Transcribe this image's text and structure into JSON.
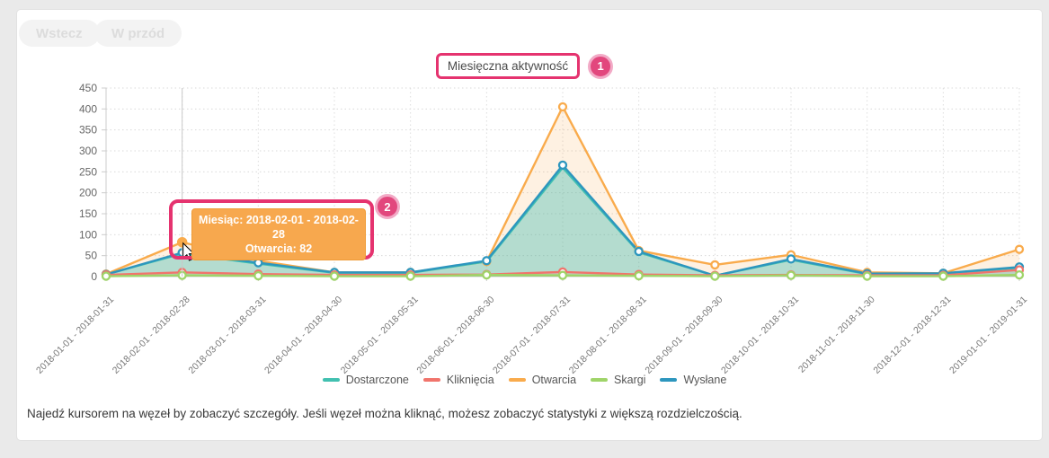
{
  "toolbar": {
    "back_label": "Wstecz",
    "forward_label": "W przód"
  },
  "header": {
    "chart_title": "Miesięczna aktywność"
  },
  "annotations": {
    "badge1_label": "1",
    "badge2_label": "2",
    "highlight_color": "#e5336f"
  },
  "tooltip": {
    "line1": "Miesiąc: 2018-02-01 - 2018-02-28",
    "line2": "Otwarcia: 82",
    "background": "#f7a84e"
  },
  "footer_note": "Najedź kursorem na węzeł by zobaczyć szczegóły. Jeśli węzeł można kliknąć, możesz zobaczyć statystyki z większą rozdzielczością.",
  "chart_data": {
    "type": "area",
    "title": "Miesięczna aktywność",
    "categories": [
      "2018-01-01 - 2018-01-31",
      "2018-02-01 - 2018-02-28",
      "2018-03-01 - 2018-03-31",
      "2018-04-01 - 2018-04-30",
      "2018-05-01 - 2018-05-31",
      "2018-06-01 - 2018-06-30",
      "2018-07-01 - 2018-07-31",
      "2018-08-01 - 2018-08-31",
      "2018-09-01 - 2018-09-30",
      "2018-10-01 - 2018-10-31",
      "2018-11-01 - 2018-11-30",
      "2018-12-01 - 2018-12-31",
      "2019-01-01 - 2019-01-31"
    ],
    "series": [
      {
        "name": "Dostarczone",
        "color": "#41c0b0",
        "fill_opacity": 0.35,
        "values": [
          5,
          55,
          31,
          9,
          9,
          36,
          260,
          58,
          2,
          40,
          6,
          7,
          21
        ]
      },
      {
        "name": "Kliknięcia",
        "color": "#f1746c",
        "fill_opacity": 0.1,
        "values": [
          4,
          10,
          6,
          4,
          4,
          5,
          11,
          5,
          3,
          4,
          3,
          3,
          16
        ]
      },
      {
        "name": "Otwarcia",
        "color": "#f9ab4c",
        "fill_opacity": 0.16,
        "values": [
          6,
          82,
          38,
          10,
          10,
          36,
          405,
          62,
          28,
          52,
          10,
          8,
          65
        ]
      },
      {
        "name": "Skargi",
        "color": "#9fd469",
        "fill_opacity": 0.25,
        "values": [
          1,
          3,
          2,
          1,
          1,
          4,
          3,
          2,
          1,
          3,
          1,
          1,
          4
        ]
      },
      {
        "name": "Wysłane",
        "color": "#2d96be",
        "fill_opacity": 0.05,
        "values": [
          5,
          57,
          33,
          10,
          10,
          38,
          266,
          60,
          2,
          42,
          7,
          8,
          23
        ]
      }
    ],
    "ylim": [
      0,
      450
    ],
    "ytick_step": 50,
    "yticks": [
      0,
      50,
      100,
      150,
      200,
      250,
      300,
      350,
      400,
      450
    ],
    "grid": "dashed",
    "legend_position": "bottom",
    "highlight": {
      "series": "Otwarcia",
      "category_index": 1,
      "value": 82
    }
  }
}
